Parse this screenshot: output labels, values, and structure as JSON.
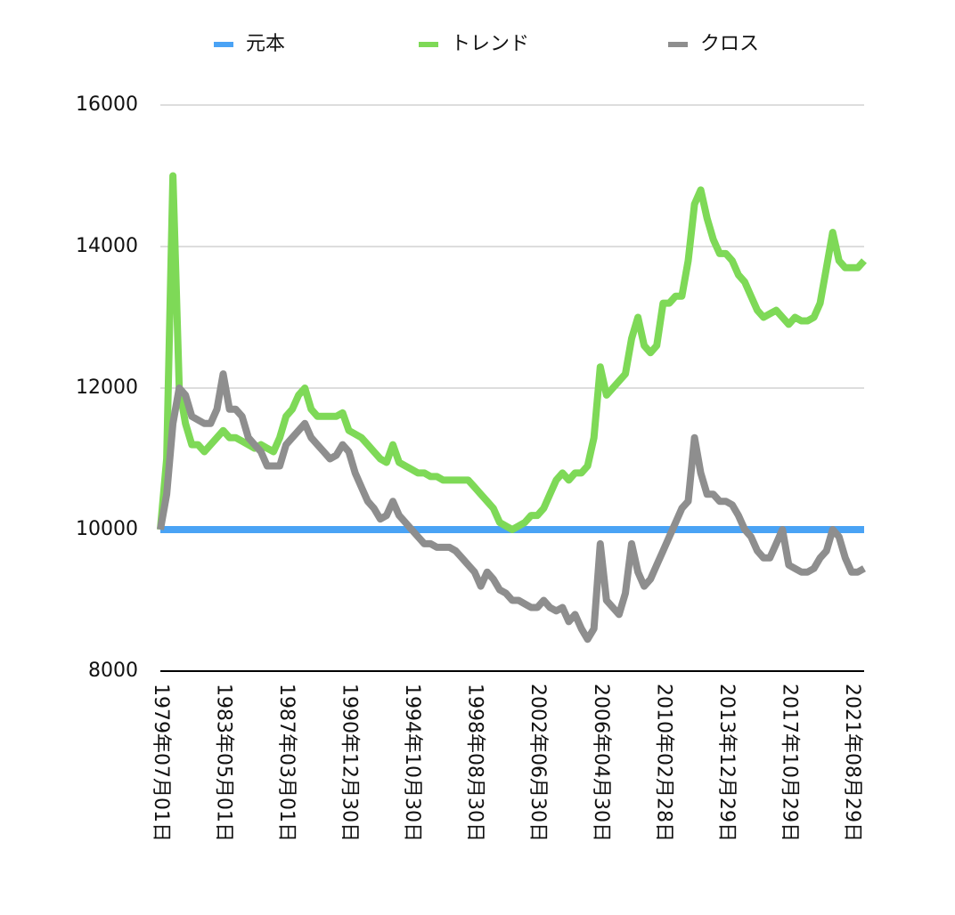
{
  "chart_data": {
    "type": "line",
    "categories": [
      "1979年07月01日",
      null,
      null,
      null,
      null,
      null,
      null,
      null,
      null,
      null,
      "1983年05月01日",
      null,
      null,
      null,
      null,
      null,
      null,
      null,
      null,
      null,
      "1987年03月01日",
      null,
      null,
      null,
      null,
      null,
      null,
      null,
      null,
      null,
      "1990年12月30日",
      null,
      null,
      null,
      null,
      null,
      null,
      null,
      null,
      null,
      "1994年10月30日",
      null,
      null,
      null,
      null,
      null,
      null,
      null,
      null,
      null,
      "1998年08月30日",
      null,
      null,
      null,
      null,
      null,
      null,
      null,
      null,
      null,
      "2002年06月30日",
      null,
      null,
      null,
      null,
      null,
      null,
      null,
      null,
      null,
      "2006年04月30日",
      null,
      null,
      null,
      null,
      null,
      null,
      null,
      null,
      null,
      "2010年02月28日",
      null,
      null,
      null,
      null,
      null,
      null,
      null,
      null,
      null,
      "2013年12月29日",
      null,
      null,
      null,
      null,
      null,
      null,
      null,
      null,
      null,
      "2017年10月29日",
      null,
      null,
      null,
      null,
      null,
      null,
      null,
      null,
      null,
      "2021年08月29日",
      null,
      null
    ],
    "series": [
      {
        "name": "元本",
        "color": "#4aa3f5",
        "values": [
          10000,
          10000,
          10000,
          10000,
          10000,
          10000,
          10000,
          10000,
          10000,
          10000,
          10000,
          10000,
          10000,
          10000,
          10000,
          10000,
          10000,
          10000,
          10000,
          10000,
          10000,
          10000,
          10000,
          10000,
          10000,
          10000,
          10000,
          10000,
          10000,
          10000,
          10000,
          10000,
          10000,
          10000,
          10000,
          10000,
          10000,
          10000,
          10000,
          10000,
          10000,
          10000,
          10000,
          10000,
          10000,
          10000,
          10000,
          10000,
          10000,
          10000,
          10000,
          10000,
          10000,
          10000,
          10000,
          10000,
          10000,
          10000,
          10000,
          10000,
          10000,
          10000,
          10000,
          10000,
          10000,
          10000,
          10000,
          10000,
          10000,
          10000,
          10000,
          10000,
          10000,
          10000,
          10000,
          10000,
          10000,
          10000,
          10000,
          10000,
          10000,
          10000,
          10000,
          10000,
          10000,
          10000,
          10000,
          10000,
          10000,
          10000,
          10000,
          10000,
          10000,
          10000,
          10000,
          10000,
          10000,
          10000,
          10000,
          10000,
          10000,
          10000,
          10000,
          10000,
          10000,
          10000,
          10000,
          10000,
          10000,
          10000,
          10000,
          10000,
          10000
        ]
      },
      {
        "name": "トレンド",
        "color": "#7ed957",
        "values": [
          10000,
          11000,
          15000,
          12000,
          11500,
          11200,
          11200,
          11100,
          11200,
          11300,
          11400,
          11300,
          11300,
          11250,
          11200,
          11150,
          11200,
          11150,
          11100,
          11300,
          11600,
          11700,
          11900,
          12000,
          11700,
          11600,
          11600,
          11600,
          11600,
          11650,
          11400,
          11350,
          11300,
          11200,
          11100,
          11000,
          10950,
          11200,
          10950,
          10900,
          10850,
          10800,
          10800,
          10750,
          10750,
          10700,
          10700,
          10700,
          10700,
          10700,
          10600,
          10500,
          10400,
          10300,
          10100,
          10050,
          10000,
          10050,
          10100,
          10200,
          10200,
          10300,
          10500,
          10700,
          10800,
          10700,
          10800,
          10800,
          10900,
          11300,
          12300,
          11900,
          12000,
          12100,
          12200,
          12700,
          13000,
          12600,
          12500,
          12600,
          13200,
          13200,
          13300,
          13300,
          13800,
          14600,
          14800,
          14400,
          14100,
          13900,
          13900,
          13800,
          13600,
          13500,
          13300,
          13100,
          13000,
          13050,
          13100,
          13000,
          12900,
          13000,
          12950,
          12950,
          13000,
          13200,
          13700,
          14200,
          13800,
          13700,
          13700,
          13700,
          13800
        ]
      },
      {
        "name": "クロス",
        "color": "#8e8e8e",
        "values": [
          10000,
          10500,
          11500,
          12000,
          11900,
          11600,
          11550,
          11500,
          11500,
          11700,
          12200,
          11700,
          11700,
          11600,
          11300,
          11200,
          11100,
          10900,
          10900,
          10900,
          11200,
          11300,
          11400,
          11500,
          11300,
          11200,
          11100,
          11000,
          11050,
          11200,
          11100,
          10800,
          10600,
          10400,
          10300,
          10150,
          10200,
          10400,
          10200,
          10100,
          10000,
          9900,
          9800,
          9800,
          9750,
          9750,
          9750,
          9700,
          9600,
          9500,
          9400,
          9200,
          9400,
          9300,
          9150,
          9100,
          9000,
          9000,
          8950,
          8900,
          8900,
          9000,
          8900,
          8850,
          8900,
          8700,
          8800,
          8600,
          8450,
          8600,
          9800,
          9000,
          8900,
          8800,
          9100,
          9800,
          9400,
          9200,
          9300,
          9500,
          9700,
          9900,
          10100,
          10300,
          10400,
          11300,
          10800,
          10500,
          10500,
          10400,
          10400,
          10350,
          10200,
          10000,
          9900,
          9700,
          9600,
          9600,
          9800,
          10000,
          9500,
          9450,
          9400,
          9400,
          9450,
          9600,
          9700,
          10000,
          9900,
          9600,
          9400,
          9400,
          9450
        ]
      }
    ],
    "ylim": [
      8000,
      16000
    ],
    "yticks": [
      8000,
      10000,
      12000,
      14000,
      16000
    ],
    "grid": true
  }
}
